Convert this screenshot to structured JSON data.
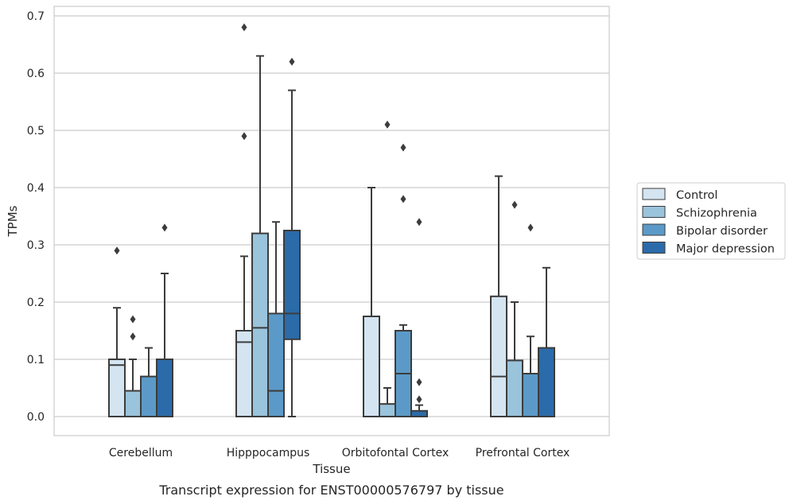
{
  "chart_data": {
    "type": "box",
    "xlabel": "Tissue",
    "ylabel": "TPMs",
    "caption": "Transcript expression for ENST00000576797 by tissue",
    "ylim": [
      -0.033,
      0.715
    ],
    "yticks": [
      "0.0",
      "0.1",
      "0.2",
      "0.3",
      "0.4",
      "0.5",
      "0.6",
      "0.7"
    ],
    "ytick_values": [
      0,
      0.1,
      0.2,
      0.3,
      0.4,
      0.5,
      0.6,
      0.7
    ],
    "grid": "horizontal",
    "legend_position": "right",
    "categories": [
      "Cerebellum",
      "Hipppocampus",
      "Orbitofontal Cortex",
      "Prefrontal Cortex"
    ],
    "series": [
      {
        "name": "Control",
        "color": "#d4e4f1",
        "boxes": [
          {
            "min": 0,
            "q1": 0,
            "median": 0.09,
            "q3": 0.1,
            "max": 0.19,
            "outliers": [
              0.29
            ]
          },
          {
            "min": 0,
            "q1": 0,
            "median": 0.13,
            "q3": 0.15,
            "max": 0.28,
            "outliers": [
              0.49,
              0.68
            ]
          },
          {
            "min": 0,
            "q1": 0,
            "median": 0,
            "q3": 0.175,
            "max": 0.4,
            "outliers": []
          },
          {
            "min": 0,
            "q1": 0,
            "median": 0.07,
            "q3": 0.21,
            "max": 0.42,
            "outliers": []
          }
        ]
      },
      {
        "name": "Schizophrenia",
        "color": "#9ac3dc",
        "boxes": [
          {
            "min": 0,
            "q1": 0,
            "median": 0,
            "q3": 0.045,
            "max": 0.1,
            "outliers": [
              0.14,
              0.17
            ]
          },
          {
            "min": 0,
            "q1": 0,
            "median": 0.155,
            "q3": 0.32,
            "max": 0.63,
            "outliers": []
          },
          {
            "min": 0,
            "q1": 0,
            "median": 0,
            "q3": 0.022,
            "max": 0.05,
            "outliers": [
              0.51
            ]
          },
          {
            "min": 0,
            "q1": 0,
            "median": 0,
            "q3": 0.098,
            "max": 0.2,
            "outliers": [
              0.37
            ]
          }
        ]
      },
      {
        "name": "Bipolar disorder",
        "color": "#5b9ac8",
        "boxes": [
          {
            "min": 0,
            "q1": 0,
            "median": 0,
            "q3": 0.07,
            "max": 0.12,
            "outliers": []
          },
          {
            "min": 0,
            "q1": 0,
            "median": 0.045,
            "q3": 0.18,
            "max": 0.34,
            "outliers": []
          },
          {
            "min": 0,
            "q1": 0,
            "median": 0.075,
            "q3": 0.15,
            "max": 0.16,
            "outliers": [
              0.38,
              0.47
            ]
          },
          {
            "min": 0,
            "q1": 0,
            "median": 0,
            "q3": 0.075,
            "max": 0.14,
            "outliers": [
              0.33
            ]
          }
        ]
      },
      {
        "name": "Major depression",
        "color": "#2b6ba9",
        "boxes": [
          {
            "min": 0,
            "q1": 0,
            "median": 0,
            "q3": 0.1,
            "max": 0.25,
            "outliers": [
              0.33
            ]
          },
          {
            "min": 0,
            "q1": 0.135,
            "median": 0.18,
            "q3": 0.325,
            "max": 0.57,
            "outliers": [
              0.62
            ]
          },
          {
            "min": 0,
            "q1": 0,
            "median": 0,
            "q3": 0.01,
            "max": 0.02,
            "outliers": [
              0.03,
              0.06,
              0.34
            ]
          },
          {
            "min": 0,
            "q1": 0,
            "median": 0,
            "q3": 0.12,
            "max": 0.26,
            "outliers": []
          }
        ]
      }
    ]
  }
}
